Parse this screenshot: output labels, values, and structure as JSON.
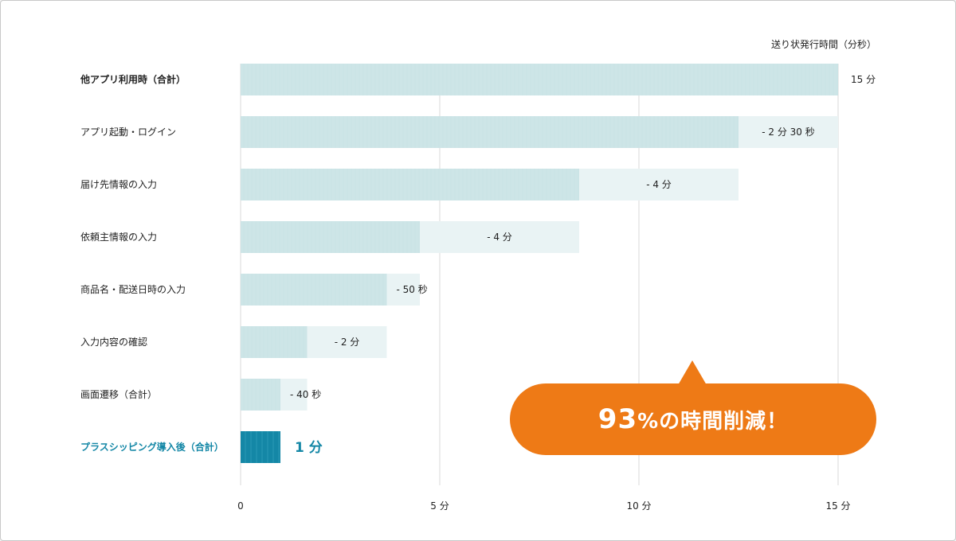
{
  "chart_data": {
    "type": "bar",
    "orientation": "horizontal",
    "unit_label": "送り状発行時間（分秒）",
    "x_axis": {
      "min": 0,
      "max": 15,
      "ticks": [
        0,
        5,
        10,
        15
      ],
      "tick_labels": [
        "0",
        "5 分",
        "10 分",
        "15 分"
      ]
    },
    "grid": true,
    "bars": [
      {
        "category": "他アプリ利用時（合計）",
        "start": 0,
        "end": 15,
        "label": "15 分",
        "type": "total"
      },
      {
        "category": "アプリ起動・ログイン",
        "start": 12.5,
        "end": 15,
        "label": "- 2 分 30 秒",
        "type": "reduction"
      },
      {
        "category": "届け先情報の入力",
        "start": 8.5,
        "end": 12.5,
        "label": "- 4 分",
        "type": "reduction"
      },
      {
        "category": "依頼主情報の入力",
        "start": 4.5,
        "end": 8.5,
        "label": "- 4 分",
        "type": "reduction"
      },
      {
        "category": "商品名・配送日時の入力",
        "start": 3.67,
        "end": 4.5,
        "label": "- 50 秒",
        "type": "reduction"
      },
      {
        "category": "入力内容の確認",
        "start": 1.67,
        "end": 3.67,
        "label": "- 2 分",
        "type": "reduction"
      },
      {
        "category": "画面遷移（合計）",
        "start": 1,
        "end": 1.67,
        "label": "- 40 秒",
        "type": "reduction"
      },
      {
        "category": "プラスシッピング導入後（合計）",
        "start": 0,
        "end": 1,
        "label": "1 分",
        "type": "result"
      }
    ],
    "colors": {
      "base": "#cde5e7",
      "reduction": "#e9f3f4",
      "result": "#1487a6",
      "grid": "#d8d8d8",
      "accent": "#ee7a16"
    }
  },
  "callout": {
    "percent": "93",
    "text": "%の時間削減！"
  }
}
